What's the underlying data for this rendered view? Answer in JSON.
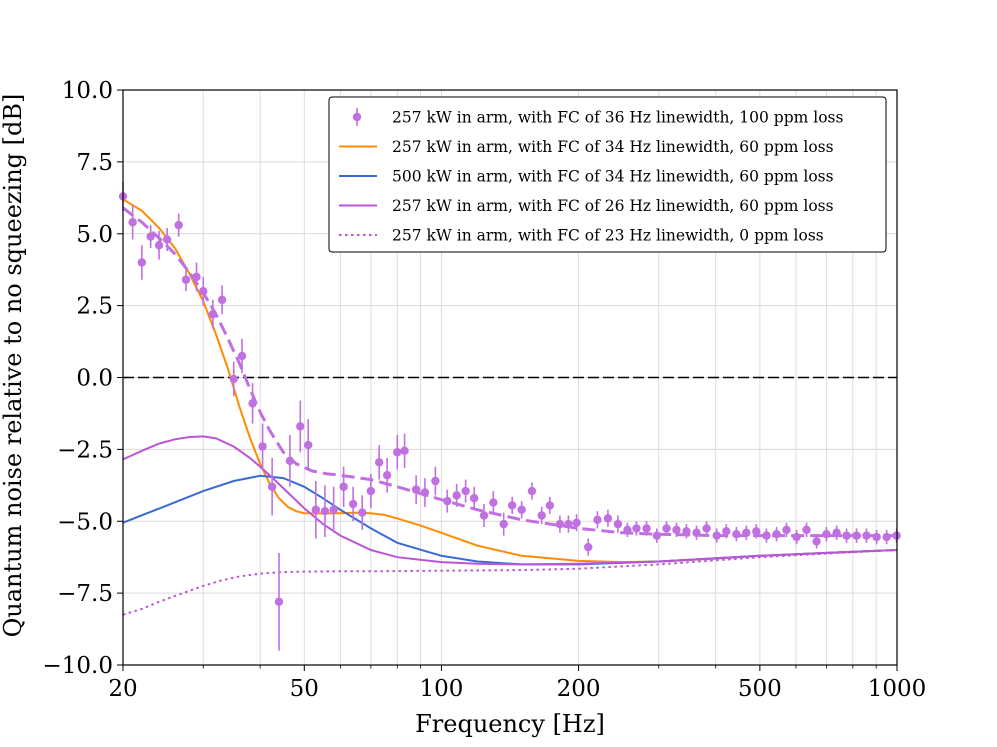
{
  "chart_data": {
    "type": "line",
    "title": "",
    "xlabel": "Frequency [Hz]",
    "ylabel": "Quantum noise relative to no squeezing [dB]",
    "xscale": "log",
    "xlim": [
      20,
      1000
    ],
    "ylim": [
      -10.0,
      10.0
    ],
    "grid": true,
    "x_ticks": [
      20,
      50,
      100,
      200,
      500,
      1000
    ],
    "x_tick_labels": [
      "20",
      "50",
      "100",
      "200",
      "500",
      "1000"
    ],
    "y_ticks": [
      -10.0,
      -7.5,
      -5.0,
      -2.5,
      0.0,
      2.5,
      5.0,
      7.5,
      10.0
    ],
    "y_tick_labels": [
      "−10.0",
      "−7.5",
      "−5.0",
      "−2.5",
      "0.0",
      "2.5",
      "5.0",
      "7.5",
      "10.0"
    ],
    "legend_position": "top-right",
    "reference_line": {
      "y": 0.0,
      "style": "dashed",
      "color": "#000000"
    },
    "measurement": {
      "name": "257 kW in arm, with FC of 36 Hz linewidth, 100 ppm loss",
      "color": "#c070e0",
      "points": [
        {
          "x": 20.0,
          "y": 6.3,
          "err": 0.5
        },
        {
          "x": 21.0,
          "y": 5.4,
          "err": 0.6
        },
        {
          "x": 22.0,
          "y": 4.0,
          "err": 0.6
        },
        {
          "x": 23.0,
          "y": 4.9,
          "err": 0.4
        },
        {
          "x": 24.0,
          "y": 4.6,
          "err": 0.5
        },
        {
          "x": 25.0,
          "y": 4.8,
          "err": 0.4
        },
        {
          "x": 26.5,
          "y": 5.3,
          "err": 0.4
        },
        {
          "x": 27.5,
          "y": 3.4,
          "err": 0.4
        },
        {
          "x": 29.0,
          "y": 3.5,
          "err": 0.5
        },
        {
          "x": 30.0,
          "y": 3.0,
          "err": 0.5
        },
        {
          "x": 31.5,
          "y": 2.2,
          "err": 0.5
        },
        {
          "x": 33.0,
          "y": 2.7,
          "err": 0.5
        },
        {
          "x": 35.0,
          "y": -0.05,
          "err": 0.6
        },
        {
          "x": 36.5,
          "y": 0.75,
          "err": 0.6
        },
        {
          "x": 38.5,
          "y": -0.9,
          "err": 0.7
        },
        {
          "x": 40.5,
          "y": -2.4,
          "err": 0.8
        },
        {
          "x": 42.5,
          "y": -3.8,
          "err": 1.0
        },
        {
          "x": 44.0,
          "y": -7.8,
          "err": 1.7
        },
        {
          "x": 46.5,
          "y": -2.9,
          "err": 0.9
        },
        {
          "x": 49.0,
          "y": -1.7,
          "err": 0.9
        },
        {
          "x": 51.0,
          "y": -2.35,
          "err": 0.9
        },
        {
          "x": 53.0,
          "y": -4.6,
          "err": 1.0
        },
        {
          "x": 55.5,
          "y": -4.65,
          "err": 0.9
        },
        {
          "x": 58.0,
          "y": -4.6,
          "err": 0.8
        },
        {
          "x": 61.0,
          "y": -3.8,
          "err": 0.7
        },
        {
          "x": 64.0,
          "y": -4.4,
          "err": 0.6
        },
        {
          "x": 67.0,
          "y": -4.7,
          "err": 0.6
        },
        {
          "x": 70.0,
          "y": -3.95,
          "err": 0.6
        },
        {
          "x": 73.0,
          "y": -2.95,
          "err": 0.6
        },
        {
          "x": 76.0,
          "y": -3.4,
          "err": 0.6
        },
        {
          "x": 80.0,
          "y": -2.6,
          "err": 0.6
        },
        {
          "x": 83.0,
          "y": -2.55,
          "err": 0.6
        },
        {
          "x": 88.0,
          "y": -3.9,
          "err": 0.5
        },
        {
          "x": 92.0,
          "y": -4.0,
          "err": 0.5
        },
        {
          "x": 97.0,
          "y": -3.6,
          "err": 0.5
        },
        {
          "x": 103.0,
          "y": -4.3,
          "err": 0.4
        },
        {
          "x": 108.0,
          "y": -4.1,
          "err": 0.4
        },
        {
          "x": 113.0,
          "y": -3.95,
          "err": 0.4
        },
        {
          "x": 118.0,
          "y": -4.2,
          "err": 0.4
        },
        {
          "x": 124.0,
          "y": -4.8,
          "err": 0.4
        },
        {
          "x": 130.0,
          "y": -4.35,
          "err": 0.4
        },
        {
          "x": 137.0,
          "y": -5.1,
          "err": 0.4
        },
        {
          "x": 143.0,
          "y": -4.45,
          "err": 0.3
        },
        {
          "x": 150.0,
          "y": -4.6,
          "err": 0.3
        },
        {
          "x": 158.0,
          "y": -3.95,
          "err": 0.3
        },
        {
          "x": 166.0,
          "y": -4.8,
          "err": 0.3
        },
        {
          "x": 173.0,
          "y": -4.45,
          "err": 0.3
        },
        {
          "x": 182.0,
          "y": -5.1,
          "err": 0.3
        },
        {
          "x": 190.0,
          "y": -5.1,
          "err": 0.3
        },
        {
          "x": 198.0,
          "y": -5.05,
          "err": 0.3
        },
        {
          "x": 210.0,
          "y": -5.9,
          "err": 0.3
        },
        {
          "x": 220.0,
          "y": -4.95,
          "err": 0.3
        },
        {
          "x": 232.0,
          "y": -4.9,
          "err": 0.3
        },
        {
          "x": 244.0,
          "y": -5.1,
          "err": 0.3
        },
        {
          "x": 256.0,
          "y": -5.3,
          "err": 0.25
        },
        {
          "x": 268.0,
          "y": -5.25,
          "err": 0.25
        },
        {
          "x": 282.0,
          "y": -5.25,
          "err": 0.25
        },
        {
          "x": 297.0,
          "y": -5.5,
          "err": 0.25
        },
        {
          "x": 312.0,
          "y": -5.25,
          "err": 0.25
        },
        {
          "x": 328.0,
          "y": -5.3,
          "err": 0.25
        },
        {
          "x": 345.0,
          "y": -5.35,
          "err": 0.25
        },
        {
          "x": 363.0,
          "y": -5.4,
          "err": 0.25
        },
        {
          "x": 382.0,
          "y": -5.25,
          "err": 0.25
        },
        {
          "x": 402.0,
          "y": -5.5,
          "err": 0.25
        },
        {
          "x": 422.0,
          "y": -5.35,
          "err": 0.25
        },
        {
          "x": 444.0,
          "y": -5.45,
          "err": 0.25
        },
        {
          "x": 467.0,
          "y": -5.4,
          "err": 0.25
        },
        {
          "x": 491.0,
          "y": -5.35,
          "err": 0.25
        },
        {
          "x": 517.0,
          "y": -5.5,
          "err": 0.25
        },
        {
          "x": 544.0,
          "y": -5.45,
          "err": 0.25
        },
        {
          "x": 572.0,
          "y": -5.3,
          "err": 0.25
        },
        {
          "x": 602.0,
          "y": -5.55,
          "err": 0.25
        },
        {
          "x": 633.0,
          "y": -5.3,
          "err": 0.25
        },
        {
          "x": 666.0,
          "y": -5.7,
          "err": 0.25
        },
        {
          "x": 700.0,
          "y": -5.45,
          "err": 0.25
        },
        {
          "x": 737.0,
          "y": -5.4,
          "err": 0.25
        },
        {
          "x": 775.0,
          "y": -5.5,
          "err": 0.25
        },
        {
          "x": 815.0,
          "y": -5.5,
          "err": 0.25
        },
        {
          "x": 857.0,
          "y": -5.5,
          "err": 0.25
        },
        {
          "x": 902.0,
          "y": -5.55,
          "err": 0.25
        },
        {
          "x": 949.0,
          "y": -5.55,
          "err": 0.25
        },
        {
          "x": 998.0,
          "y": -5.5,
          "err": 0.25
        }
      ]
    },
    "measurement_fit": {
      "color": "#c070e0",
      "style": "dashed",
      "x": [
        20,
        22,
        24,
        26,
        28,
        30,
        32,
        34,
        36,
        38,
        40,
        42,
        45,
        48,
        52,
        56,
        60,
        70,
        80,
        100,
        120,
        150,
        200,
        250,
        300,
        400,
        500,
        700,
        1000
      ],
      "y": [
        5.9,
        5.4,
        4.85,
        4.3,
        3.65,
        2.95,
        2.2,
        1.35,
        0.5,
        -0.4,
        -1.2,
        -1.85,
        -2.6,
        -3.0,
        -3.25,
        -3.35,
        -3.4,
        -3.55,
        -3.8,
        -4.25,
        -4.6,
        -4.95,
        -5.25,
        -5.4,
        -5.45,
        -5.5,
        -5.5,
        -5.5,
        -5.5
      ]
    },
    "series": [
      {
        "name": "257 kW in arm, with FC of 34 Hz linewidth, 60 ppm loss",
        "color": "#ff8c00",
        "style": "solid",
        "x": [
          20,
          22,
          24,
          26,
          28,
          30,
          32,
          34,
          36,
          38,
          40,
          42,
          44,
          46,
          48,
          50,
          55,
          60,
          65,
          70,
          75,
          80,
          90,
          100,
          120,
          150,
          200,
          250,
          300,
          400,
          500,
          700,
          1000
        ],
        "y": [
          6.2,
          5.8,
          5.2,
          4.5,
          3.6,
          2.65,
          1.5,
          0.3,
          -1.0,
          -2.1,
          -3.0,
          -3.7,
          -4.2,
          -4.5,
          -4.65,
          -4.72,
          -4.73,
          -4.72,
          -4.7,
          -4.72,
          -4.78,
          -4.9,
          -5.15,
          -5.4,
          -5.85,
          -6.2,
          -6.38,
          -6.42,
          -6.4,
          -6.3,
          -6.2,
          -6.1,
          -6.0
        ]
      },
      {
        "name": "500 kW in arm, with FC of 34 Hz linewidth, 60 ppm loss",
        "color": "#3a6ad6",
        "style": "solid",
        "x": [
          20,
          25,
          30,
          35,
          40,
          45,
          50,
          55,
          60,
          70,
          80,
          100,
          120,
          150,
          200,
          300,
          500,
          700,
          1000
        ],
        "y": [
          -5.05,
          -4.45,
          -3.95,
          -3.6,
          -3.42,
          -3.5,
          -3.8,
          -4.2,
          -4.6,
          -5.25,
          -5.75,
          -6.2,
          -6.4,
          -6.5,
          -6.5,
          -6.4,
          -6.2,
          -6.1,
          -6.0
        ]
      },
      {
        "name": "257 kW in arm, with FC of 26 Hz linewidth, 60 ppm loss",
        "color": "#b956d6",
        "style": "solid",
        "x": [
          20,
          22,
          24,
          26,
          28,
          30,
          32,
          35,
          38,
          40,
          43,
          46,
          50,
          55,
          60,
          70,
          80,
          100,
          120,
          150,
          200,
          300,
          500,
          700,
          1000
        ],
        "y": [
          -2.85,
          -2.55,
          -2.3,
          -2.15,
          -2.07,
          -2.05,
          -2.12,
          -2.4,
          -2.8,
          -3.1,
          -3.55,
          -4.0,
          -4.55,
          -5.1,
          -5.5,
          -6.0,
          -6.25,
          -6.42,
          -6.48,
          -6.5,
          -6.48,
          -6.4,
          -6.2,
          -6.1,
          -6.0
        ]
      },
      {
        "name": "257 kW in arm, with FC of 23 Hz linewidth, 0 ppm loss",
        "color": "#b956d6",
        "style": "dotted",
        "x": [
          20,
          22,
          24,
          26,
          28,
          30,
          33,
          36,
          40,
          45,
          50,
          60,
          70,
          100,
          150,
          200,
          300,
          500,
          700,
          1000
        ],
        "y": [
          -8.25,
          -8.05,
          -7.8,
          -7.6,
          -7.42,
          -7.25,
          -7.05,
          -6.92,
          -6.82,
          -6.77,
          -6.75,
          -6.74,
          -6.74,
          -6.72,
          -6.7,
          -6.65,
          -6.5,
          -6.25,
          -6.12,
          -6.0
        ]
      }
    ]
  }
}
